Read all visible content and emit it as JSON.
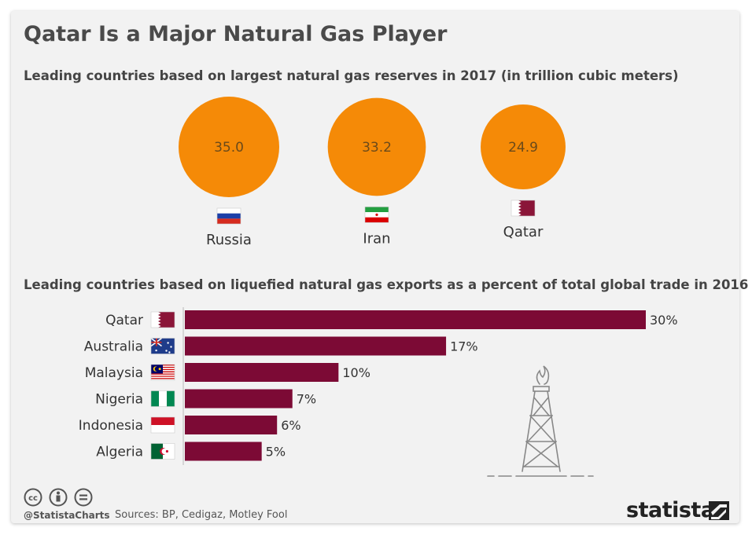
{
  "title": "Qatar Is a Major Natural Gas Player",
  "colors": {
    "bubble": "#f58a07",
    "bar": "#7c0a35",
    "background": "#f2f2f2"
  },
  "chart_data": [
    {
      "type": "bubble",
      "title": "Leading countries based on largest natural gas reserves in 2017 (in trillion cubic meters)",
      "categories": [
        "Russia",
        "Iran",
        "Qatar"
      ],
      "values": [
        35.0,
        33.2,
        24.9
      ],
      "value_labels": [
        "35.0",
        "33.2",
        "24.9"
      ],
      "flags": [
        "russia-flag",
        "iran-flag",
        "qatar-flag"
      ]
    },
    {
      "type": "bar",
      "orientation": "horizontal",
      "title": "Leading countries based on liquefied natural gas exports as a percent of total global trade in 2016",
      "categories": [
        "Qatar",
        "Australia",
        "Malaysia",
        "Nigeria",
        "Indonesia",
        "Algeria"
      ],
      "values": [
        30,
        17,
        10,
        7,
        6,
        5
      ],
      "value_labels": [
        "30%",
        "17%",
        "10%",
        "7%",
        "6%",
        "5%"
      ],
      "flags": [
        "qatar-flag",
        "australia-flag",
        "malaysia-flag",
        "nigeria-flag",
        "indonesia-flag",
        "algeria-flag"
      ],
      "xlim": [
        0,
        30
      ]
    }
  ],
  "footer": {
    "handle": "@StatistaCharts",
    "sources": "Sources: BP, Cedigaz, Motley Fool",
    "brand": "statista",
    "license_icons": [
      "cc-icon",
      "attribution-icon",
      "no-derivatives-icon"
    ]
  }
}
